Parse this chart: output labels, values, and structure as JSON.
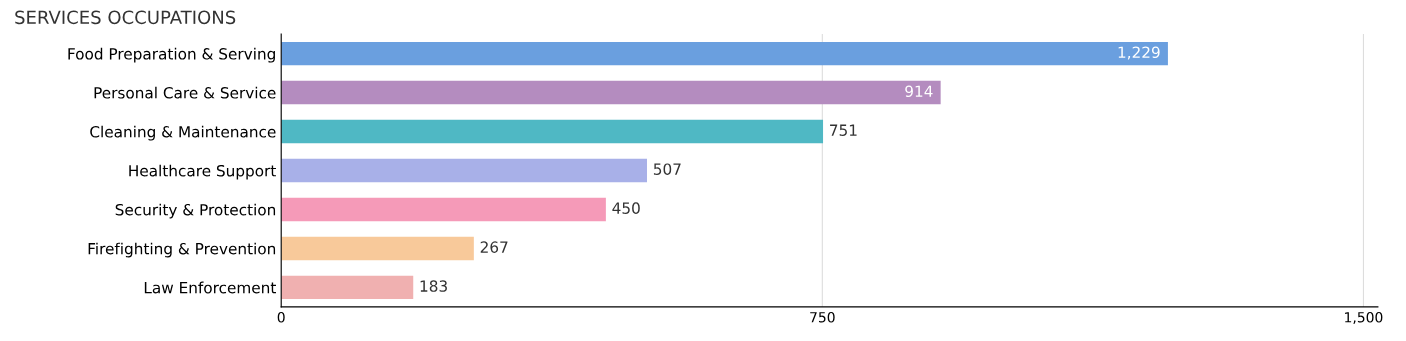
{
  "chart_data": {
    "type": "bar",
    "orientation": "horizontal",
    "title": "SERVICES OCCUPATIONS",
    "categories": [
      "Food Preparation & Serving",
      "Personal Care & Service",
      "Cleaning & Maintenance",
      "Healthcare Support",
      "Security & Protection",
      "Firefighting & Prevention",
      "Law Enforcement"
    ],
    "values": [
      1229,
      914,
      751,
      507,
      450,
      267,
      183
    ],
    "colors": [
      "#6a9fdf",
      "#b48cbf",
      "#4fb8c4",
      "#a8b0e8",
      "#f59ab8",
      "#f8c99a",
      "#f0b0b0"
    ],
    "value_labels": [
      "1,229",
      "914",
      "751",
      "507",
      "450",
      "267",
      "183"
    ],
    "xlim": [
      0,
      1520
    ],
    "xticks": [
      0,
      750,
      {
        "value": 1500,
        "label": "1,500"
      }
    ],
    "grid": "x"
  }
}
